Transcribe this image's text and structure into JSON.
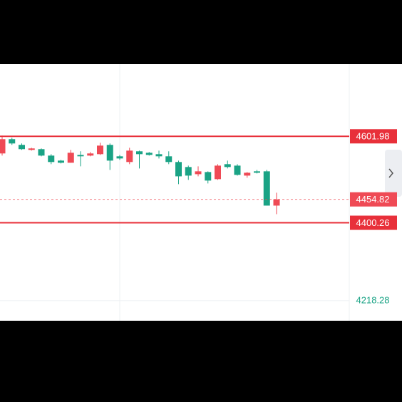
{
  "chart_data": {
    "type": "candlestick",
    "ylim": [
      4171.6,
      4770.4
    ],
    "yticks": [
      4218.28
    ],
    "grid": true,
    "up_color": "#ef4a55",
    "down_color": "#1aa385",
    "open": [
      4562.0,
      4595.3,
      4582.0,
      4570.3,
      4572.0,
      4557.0,
      4545.3,
      4540.3,
      4558.6,
      4557.0,
      4560.3,
      4582.0,
      4555.3,
      4542.0,
      4567.0,
      4563.6,
      4560.3,
      4555.3,
      4542.0,
      4530.3,
      4513.6,
      4518.6,
      4502.0,
      4537.0,
      4533.6,
      4510.3,
      4520.3,
      4520.3,
      4440.3
    ],
    "high": [
      4603.6,
      4598.6,
      4585.3,
      4575.3,
      4573.7,
      4560.3,
      4547.0,
      4570.3,
      4567.0,
      4565.3,
      4587.0,
      4585.3,
      4558.6,
      4575.3,
      4568.6,
      4565.3,
      4568.6,
      4567.0,
      4545.3,
      4533.6,
      4532.0,
      4520.3,
      4537.0,
      4545.3,
      4537.0,
      4518.6,
      4523.6,
      4523.6,
      4470.3
    ],
    "low": [
      4557.0,
      4582.0,
      4570.3,
      4568.6,
      4555.3,
      4537.0,
      4538.6,
      4540.3,
      4532.0,
      4555.3,
      4558.6,
      4523.6,
      4547.0,
      4537.0,
      4527.0,
      4557.0,
      4550.3,
      4537.0,
      4490.3,
      4500.3,
      4508.6,
      4492.0,
      4500.3,
      4527.0,
      4510.3,
      4505.3,
      4515.3,
      4440.3,
      4420.3
    ],
    "close": [
      4595.3,
      4585.3,
      4572.0,
      4573.7,
      4557.0,
      4542.0,
      4540.3,
      4563.6,
      4555.3,
      4562.0,
      4580.3,
      4545.3,
      4550.3,
      4568.6,
      4560.3,
      4558.6,
      4555.3,
      4542.0,
      4508.6,
      4510.3,
      4520.3,
      4498.7,
      4533.6,
      4530.3,
      4512.0,
      4517.0,
      4517.0,
      4440.3,
      4454.8
    ],
    "price_lines": [
      {
        "value": 4601.98,
        "color": "#e8303a"
      },
      {
        "value": 4400.26,
        "color": "#e8303a"
      }
    ],
    "last_price": {
      "value": 4454.82,
      "color": "#ef4a55"
    }
  }
}
